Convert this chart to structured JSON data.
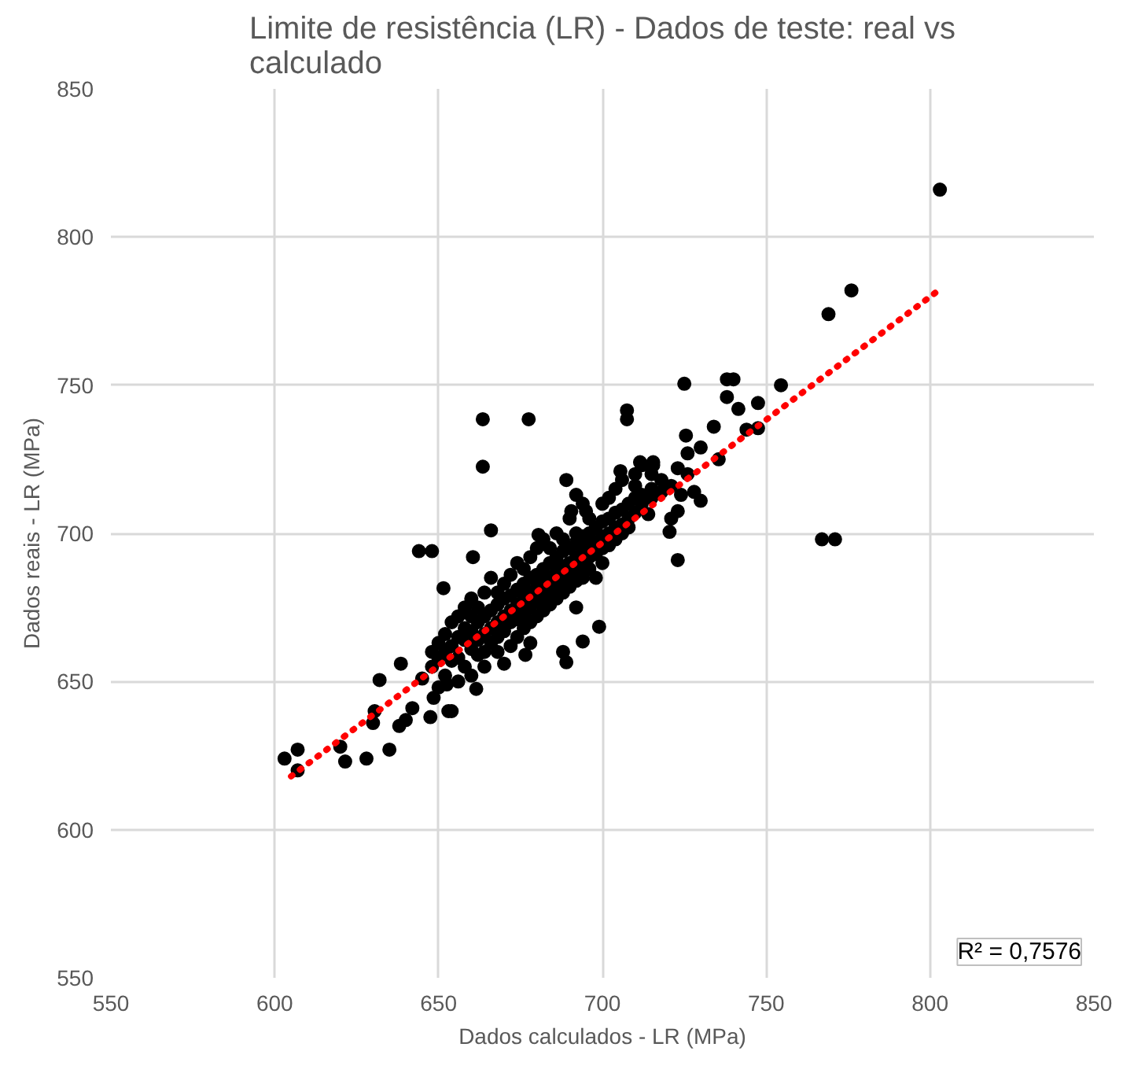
{
  "chart_data": {
    "type": "scatter",
    "title": "Limite de resistência (LR) - Dados de teste: real vs calculado",
    "xlabel": "Dados calculados - LR (MPa)",
    "ylabel": "Dados reais - LR (MPa)",
    "xlim": [
      550,
      850
    ],
    "xticks": [
      550,
      600,
      650,
      700,
      750,
      800,
      850
    ],
    "ylim": [
      550,
      850
    ],
    "yticks": [
      550,
      600,
      650,
      700,
      750,
      800,
      850
    ],
    "grid": true,
    "marker": "circle",
    "annotations": [
      "R² = 0,7576"
    ],
    "series": [
      {
        "color": "#000000",
        "x": [
          603,
          607,
          607,
          620,
          621.5,
          628,
          635,
          638,
          640,
          642,
          630.5,
          630,
          632,
          638.5,
          647.5,
          653,
          648.5,
          652.5,
          651.5,
          644,
          648,
          663.5,
          677.5,
          663.5,
          707.5,
          707.5,
          666,
          689,
          692,
          690.5,
          695,
          705.5,
          711.5,
          715.5,
          660.5,
          680.5,
          699,
          676.5,
          689,
          694,
          661.5,
          654,
          725,
          738,
          740,
          754.5,
          767,
          771,
          769,
          776,
          803,
          723,
          720.5,
          738,
          741.5,
          747.5,
          747.5,
          744,
          725.5,
          734,
          730,
          735.5,
          715.5,
          723,
          724,
          730,
          723,
          728,
          714,
          645,
          648,
          648,
          650,
          650,
          650,
          652,
          652,
          652,
          654,
          654,
          654,
          656,
          656,
          656,
          656,
          658,
          658,
          658,
          658,
          660,
          660,
          660,
          660,
          660,
          662,
          662,
          662,
          662,
          664,
          664,
          664,
          664,
          664,
          666,
          666,
          666,
          666,
          668,
          668,
          668,
          668,
          668,
          670,
          670,
          670,
          670,
          670,
          672,
          672,
          672,
          672,
          672,
          674,
          674,
          674,
          674,
          674,
          676,
          676,
          676,
          676,
          676,
          678,
          678,
          678,
          678,
          678,
          678,
          680,
          680,
          680,
          680,
          680,
          682,
          682,
          682,
          682,
          682,
          684,
          684,
          684,
          684,
          684,
          686,
          686,
          686,
          686,
          686,
          688,
          688,
          688,
          688,
          688,
          688,
          690,
          690,
          690,
          690,
          690,
          692,
          692,
          692,
          692,
          692,
          692,
          694,
          694,
          694,
          694,
          694,
          696,
          696,
          696,
          696,
          696,
          698,
          698,
          698,
          698,
          700,
          700,
          700,
          700,
          700,
          702,
          702,
          702,
          702,
          704,
          704,
          704,
          704,
          706,
          706,
          706,
          706,
          708,
          708,
          708,
          710,
          710,
          710,
          710,
          712,
          712,
          712,
          715,
          715,
          715,
          718,
          718,
          721,
          721,
          726,
          726
        ],
        "values": [
          624,
          627,
          620,
          628,
          623,
          624,
          627,
          635,
          637,
          641,
          640,
          636,
          650.5,
          656,
          638,
          640,
          644.5,
          649,
          681.5,
          694,
          694,
          738.5,
          738.5,
          722.5,
          741.5,
          738.5,
          701,
          718,
          713,
          707.5,
          707.5,
          721,
          724,
          724,
          692,
          699.5,
          668.5,
          659,
          656.5,
          663.5,
          647.5,
          640,
          750.5,
          752,
          752,
          750,
          698,
          698,
          774,
          782,
          816,
          691,
          700.5,
          746,
          742,
          744,
          735.5,
          735,
          733,
          736,
          729,
          725,
          723,
          722,
          713,
          711,
          707.5,
          714,
          706.5,
          651,
          655,
          660,
          658,
          663,
          648,
          660,
          652,
          666,
          662,
          657,
          670,
          665,
          658,
          672,
          650,
          664,
          668,
          655,
          675,
          667,
          661,
          672,
          652,
          678,
          670,
          664,
          675,
          659,
          672,
          666,
          680,
          660,
          655,
          674,
          668,
          663,
          685,
          676,
          670,
          665,
          680,
          660,
          678,
          672,
          667,
          683,
          656,
          679,
          674,
          670,
          686,
          662,
          681,
          676,
          671,
          690,
          665,
          683,
          678,
          673,
          688,
          668,
          685,
          680,
          675,
          692,
          670,
          663,
          686,
          682,
          677,
          695,
          672,
          688,
          683,
          679,
          698,
          674,
          690,
          685,
          680,
          695,
          676,
          692,
          687,
          682,
          700,
          678,
          694,
          689,
          684,
          698,
          680,
          660,
          695,
          690,
          686,
          705,
          682,
          697,
          692,
          688,
          700,
          684,
          675,
          699,
          694,
          690,
          710,
          685,
          700,
          696,
          692,
          705,
          688,
          702,
          697,
          693,
          685,
          704,
          699,
          695,
          710,
          690,
          705,
          700,
          712,
          696,
          707,
          702,
          715,
          698,
          708,
          703,
          700,
          718,
          710,
          705,
          702,
          712,
          707,
          720,
          716,
          713,
          710,
          723,
          715,
          712,
          720,
          718,
          714,
          716,
          705,
          720,
          727
        ]
      },
      {
        "type": "line",
        "color": "#ff0000",
        "line_style": "dotted",
        "marker": "none",
        "x": [
          605,
          802
        ],
        "values": [
          618,
          781.5
        ]
      }
    ]
  }
}
